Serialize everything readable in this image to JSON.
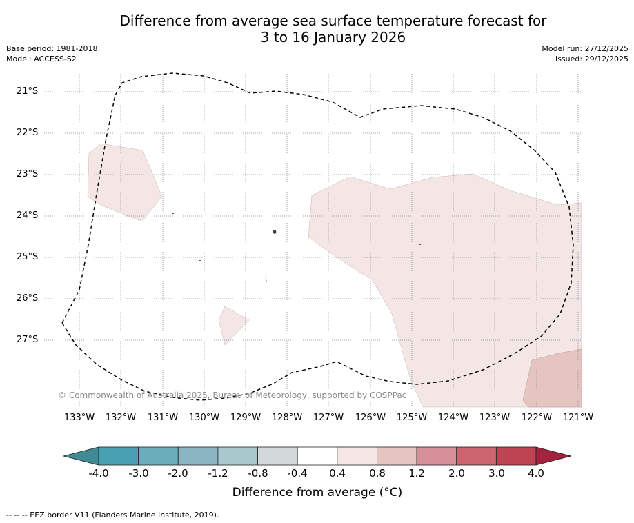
{
  "title": {
    "line1": "Difference from average sea surface temperature forecast for",
    "line2": "3 to 16 January 2026"
  },
  "meta": {
    "base_period": "Base period: 1981-2018",
    "model": "Model: ACCESS-S2",
    "model_run": "Model run: 27/12/2025",
    "issued": "Issued: 29/12/2025"
  },
  "map": {
    "latitude_labels": [
      "21°S",
      "22°S",
      "23°S",
      "24°S",
      "25°S",
      "26°S",
      "27°S"
    ],
    "longitude_labels": [
      "133°W",
      "132°W",
      "131°W",
      "130°W",
      "129°W",
      "128°W",
      "127°W",
      "126°W",
      "125°W",
      "124°W",
      "123°W",
      "122°W",
      "121°W"
    ],
    "copyright": "© Commonwealth of Australia 2025, Bureau of Meteorology, supported by COSPPac",
    "colors": {
      "anomaly_0_4_to_0_8": "#f3e6e5",
      "anomaly_0_8_to_1_2": "#e6c5c1",
      "eez_border": "#000000",
      "gridline": "#888888"
    }
  },
  "colorbar": {
    "ticks": [
      "-4.0",
      "-3.0",
      "-2.0",
      "-1.2",
      "-0.8",
      "-0.4",
      "0.4",
      "0.8",
      "1.2",
      "2.0",
      "3.0",
      "4.0"
    ],
    "colors": [
      "#3f8a94",
      "#48a0b2",
      "#6aadbb",
      "#8ab6c2",
      "#a9c8cd",
      "#d3d8da",
      "#ffffff",
      "#f3e6e5",
      "#e6c5c1",
      "#d78f97",
      "#cd6570",
      "#be4453",
      "#a3223d"
    ],
    "label": "Difference from average (°C)"
  },
  "legend_note": "--  --  -- EEZ border V11 (Flanders Marine Institute, 2019)."
}
